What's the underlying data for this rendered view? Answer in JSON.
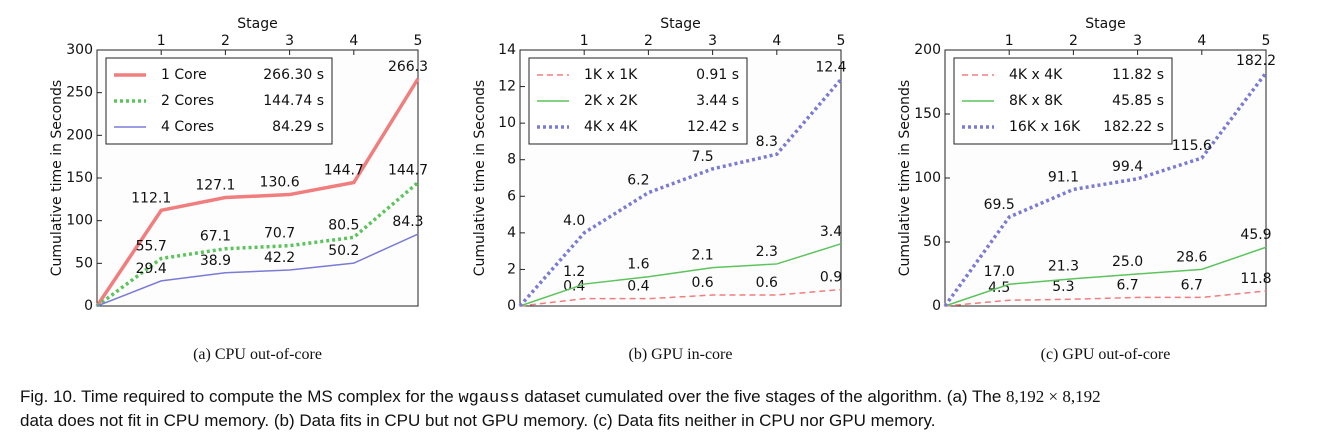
{
  "chart_data": [
    {
      "type": "line",
      "xlabel": "Stage",
      "ylabel": "Cumulative time in Seconds",
      "caption": "(a) CPU out-of-core",
      "x": [
        0,
        1,
        2,
        3,
        4,
        5
      ],
      "xlim": [
        0,
        5
      ],
      "xticks": [
        1,
        2,
        3,
        4,
        5
      ],
      "ylim": [
        0,
        300
      ],
      "yticks": [
        0,
        50,
        100,
        150,
        200,
        250,
        300
      ],
      "legend": "upper left",
      "series": [
        {
          "name": "1 Core",
          "legend_value": "266.30 s",
          "color": "#f07e7e",
          "linestyle": "solid",
          "linewidth": 3.5,
          "values": [
            0,
            112.1,
            127.1,
            130.6,
            144.7,
            266.3
          ],
          "value_labels": [
            null,
            "112.1",
            "127.1",
            "130.6",
            "144.7",
            "266.3"
          ]
        },
        {
          "name": "2 Cores",
          "legend_value": "144.74 s",
          "color": "#5cc45c",
          "linestyle": "dotted",
          "linewidth": 3.5,
          "values": [
            0,
            55.7,
            67.1,
            70.7,
            80.5,
            144.7
          ],
          "value_labels": [
            null,
            "55.7",
            "67.1",
            "70.7",
            "80.5",
            "144.7"
          ]
        },
        {
          "name": "4 Cores",
          "legend_value": "84.29 s",
          "color": "#7b7bd6",
          "linestyle": "solid",
          "linewidth": 1.5,
          "values": [
            0,
            29.4,
            38.9,
            42.2,
            50.2,
            84.3
          ],
          "value_labels": [
            null,
            "29.4",
            "38.9",
            "42.2",
            "50.2",
            "84.3"
          ]
        }
      ]
    },
    {
      "type": "line",
      "xlabel": "Stage",
      "ylabel": "Cumulative time in Seconds",
      "caption": "(b) GPU in-core",
      "x": [
        0,
        1,
        2,
        3,
        4,
        5
      ],
      "xlim": [
        0,
        5
      ],
      "xticks": [
        1,
        2,
        3,
        4,
        5
      ],
      "ylim": [
        0,
        14
      ],
      "yticks": [
        0,
        2,
        4,
        6,
        8,
        10,
        12,
        14
      ],
      "legend": "upper left",
      "series": [
        {
          "name": "1K x 1K",
          "legend_value": "0.91 s",
          "color": "#f07e7e",
          "linestyle": "dashed",
          "linewidth": 1.5,
          "values": [
            0,
            0.4,
            0.4,
            0.6,
            0.6,
            0.9
          ],
          "value_labels": [
            null,
            "0.4",
            "0.4",
            "0.6",
            "0.6",
            "0.9"
          ]
        },
        {
          "name": "2K x 2K",
          "legend_value": "3.44 s",
          "color": "#5cc45c",
          "linestyle": "solid",
          "linewidth": 1.5,
          "values": [
            0,
            1.2,
            1.6,
            2.1,
            2.3,
            3.4
          ],
          "value_labels": [
            null,
            "1.2",
            "1.6",
            "2.1",
            "2.3",
            "3.4"
          ]
        },
        {
          "name": "4K x 4K",
          "legend_value": "12.42 s",
          "color": "#7b7bd6",
          "linestyle": "dotted",
          "linewidth": 3.5,
          "values": [
            0,
            4.0,
            6.2,
            7.5,
            8.3,
            12.4
          ],
          "value_labels": [
            null,
            "4.0",
            "6.2",
            "7.5",
            "8.3",
            "12.4"
          ]
        }
      ]
    },
    {
      "type": "line",
      "xlabel": "Stage",
      "ylabel": "Cumulative time in Seconds",
      "caption": "(c) GPU out-of-core",
      "x": [
        0,
        1,
        2,
        3,
        4,
        5
      ],
      "xlim": [
        0,
        5
      ],
      "xticks": [
        1,
        2,
        3,
        4,
        5
      ],
      "ylim": [
        0,
        200
      ],
      "yticks": [
        0,
        50,
        100,
        150,
        200
      ],
      "legend": "upper left",
      "series": [
        {
          "name": "4K x 4K",
          "legend_value": "11.82 s",
          "color": "#f07e7e",
          "linestyle": "dashed",
          "linewidth": 1.5,
          "values": [
            0,
            4.5,
            5.3,
            6.7,
            6.7,
            11.8
          ],
          "value_labels": [
            null,
            "4.5",
            "5.3",
            "6.7",
            "6.7",
            "11.8"
          ]
        },
        {
          "name": "8K x 8K",
          "legend_value": "45.85 s",
          "color": "#5cc45c",
          "linestyle": "solid",
          "linewidth": 1.5,
          "values": [
            0,
            17.0,
            21.3,
            25.0,
            28.6,
            45.9
          ],
          "value_labels": [
            null,
            "17.0",
            "21.3",
            "25.0",
            "28.6",
            "45.9"
          ]
        },
        {
          "name": "16K x 16K",
          "legend_value": "182.22 s",
          "color": "#7b7bd6",
          "linestyle": "dotted",
          "linewidth": 3.5,
          "values": [
            0,
            69.5,
            91.1,
            99.4,
            115.6,
            182.2
          ],
          "value_labels": [
            null,
            "69.5",
            "91.1",
            "99.4",
            "115.6",
            "182.2"
          ]
        }
      ]
    }
  ],
  "figure_caption": {
    "line1": "Fig. 10.  Time required to compute the MS complex for the ",
    "code": "wgauss",
    "line1_end": " dataset cumulated over the five stages of the algorithm. (a) The ",
    "math": "8,192 × 8,192",
    "line2": "data does not fit in CPU memory. (b) Data fits in CPU but not GPU memory. (c) Data fits neither in CPU nor GPU memory."
  }
}
